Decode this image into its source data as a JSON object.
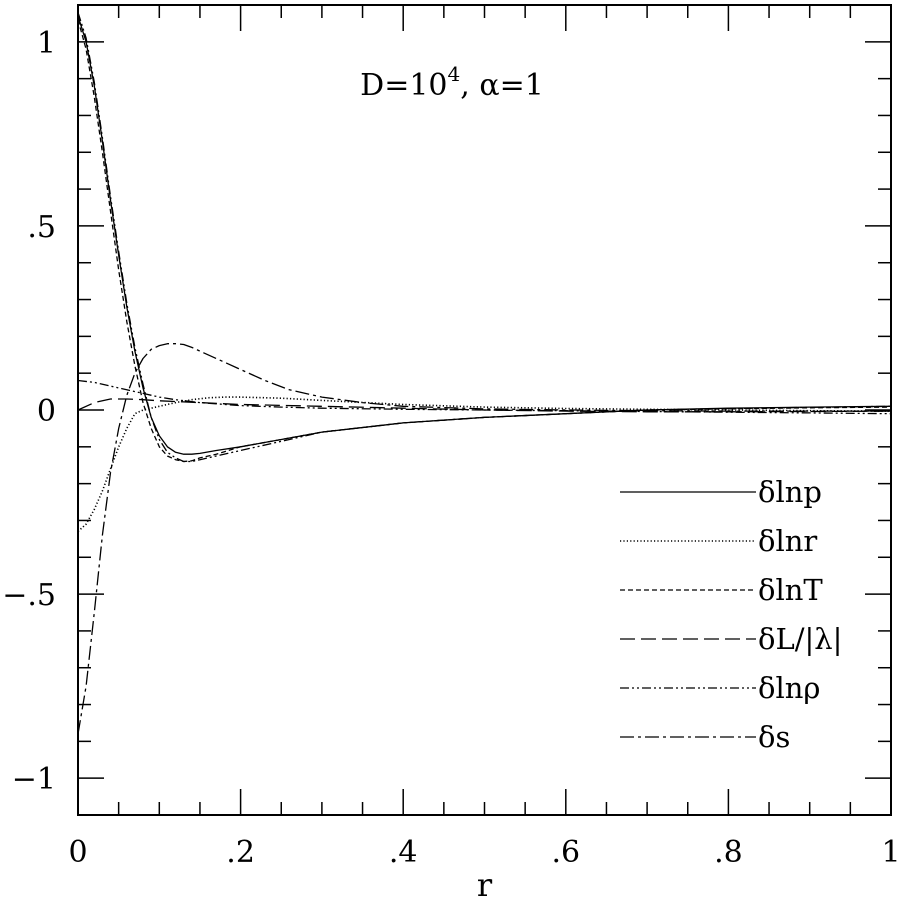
{
  "chart_data": {
    "type": "line",
    "title": "",
    "annotation": {
      "prefix": "D=10",
      "exponent": "4",
      "suffix": ",  α=1"
    },
    "xlabel": "r",
    "ylabel": "",
    "xlim": [
      0,
      1
    ],
    "ylim": [
      -1.1,
      1.1
    ],
    "x_ticks": [
      {
        "v": 0,
        "label": "0"
      },
      {
        "v": 0.2,
        "label": ".2"
      },
      {
        "v": 0.4,
        "label": ".4"
      },
      {
        "v": 0.6,
        "label": ".6"
      },
      {
        "v": 0.8,
        "label": ".8"
      },
      {
        "v": 1,
        "label": "1"
      }
    ],
    "y_ticks": [
      {
        "v": -1,
        "label": "−1"
      },
      {
        "v": -0.5,
        "label": "−.5"
      },
      {
        "v": 0,
        "label": "0"
      },
      {
        "v": 0.5,
        "label": ".5"
      },
      {
        "v": 1,
        "label": "1"
      }
    ],
    "grid": false,
    "legend_position": "lower-right",
    "series": [
      {
        "name": "δlnp",
        "style": "solid",
        "x": [
          0,
          0.01,
          0.02,
          0.03,
          0.04,
          0.05,
          0.06,
          0.07,
          0.08,
          0.09,
          0.1,
          0.11,
          0.12,
          0.13,
          0.14,
          0.15,
          0.17,
          0.2,
          0.25,
          0.3,
          0.4,
          0.5,
          0.6,
          0.7,
          0.8,
          0.9,
          1.0
        ],
        "y": [
          1.07,
          1.0,
          0.88,
          0.73,
          0.57,
          0.42,
          0.28,
          0.16,
          0.06,
          -0.02,
          -0.07,
          -0.1,
          -0.115,
          -0.12,
          -0.12,
          -0.118,
          -0.11,
          -0.1,
          -0.08,
          -0.06,
          -0.035,
          -0.02,
          -0.01,
          0.0,
          0.005,
          0.008,
          0.01
        ]
      },
      {
        "name": "δlnr",
        "style": "dotted",
        "x": [
          0,
          0.01,
          0.02,
          0.03,
          0.04,
          0.05,
          0.06,
          0.07,
          0.08,
          0.09,
          0.1,
          0.12,
          0.14,
          0.16,
          0.18,
          0.2,
          0.25,
          0.3,
          0.4,
          0.5,
          0.6,
          0.7,
          0.8,
          0.9,
          1.0
        ],
        "y": [
          -0.33,
          -0.31,
          -0.27,
          -0.22,
          -0.16,
          -0.1,
          -0.05,
          -0.01,
          0.0,
          0.005,
          0.01,
          0.02,
          0.028,
          0.033,
          0.035,
          0.035,
          0.032,
          0.026,
          0.015,
          0.008,
          0.004,
          0.002,
          0.0,
          -0.002,
          -0.003
        ]
      },
      {
        "name": "δlnT",
        "style": "dashed-short",
        "x": [
          0,
          0.01,
          0.02,
          0.03,
          0.04,
          0.05,
          0.06,
          0.07,
          0.08,
          0.09,
          0.1,
          0.11,
          0.12,
          0.13,
          0.14,
          0.15,
          0.17,
          0.2,
          0.25,
          0.3,
          0.4,
          0.5,
          0.6,
          0.7,
          0.8,
          0.9,
          1.0
        ],
        "y": [
          1.06,
          0.98,
          0.85,
          0.7,
          0.54,
          0.38,
          0.24,
          0.12,
          0.02,
          -0.05,
          -0.1,
          -0.125,
          -0.135,
          -0.14,
          -0.138,
          -0.13,
          -0.12,
          -0.1,
          -0.08,
          -0.06,
          -0.035,
          -0.02,
          -0.01,
          0.0,
          0.003,
          0.006,
          0.008
        ]
      },
      {
        "name": "δL/|λ|",
        "style": "dashed-long",
        "x": [
          0,
          0.02,
          0.04,
          0.06,
          0.08,
          0.1,
          0.15,
          0.2,
          0.3,
          0.4,
          0.5,
          0.6,
          0.7,
          0.8,
          0.9,
          1.0
        ],
        "y": [
          0.0,
          0.02,
          0.03,
          0.03,
          0.028,
          0.025,
          0.02,
          0.015,
          0.01,
          0.005,
          0.0,
          -0.003,
          -0.005,
          -0.005,
          -0.004,
          -0.003
        ]
      },
      {
        "name": "δlnρ",
        "style": "dash-dot-dot",
        "x": [
          0,
          0.01,
          0.02,
          0.03,
          0.04,
          0.05,
          0.06,
          0.07,
          0.08,
          0.09,
          0.1,
          0.11,
          0.12,
          0.13,
          0.14,
          0.15,
          0.17,
          0.2,
          0.25,
          0.3,
          0.4,
          0.5,
          0.6,
          0.7,
          0.8,
          0.9,
          1.0
        ],
        "y": [
          1.08,
          1.01,
          0.89,
          0.74,
          0.58,
          0.43,
          0.29,
          0.17,
          0.07,
          -0.02,
          -0.08,
          -0.115,
          -0.13,
          -0.14,
          -0.14,
          -0.135,
          -0.125,
          -0.11,
          -0.085,
          -0.06,
          -0.035,
          -0.02,
          -0.01,
          0.0,
          0.004,
          0.007,
          0.01
        ]
      },
      {
        "name": "δs",
        "style": "dash-dot",
        "x": [
          0,
          0.01,
          0.02,
          0.03,
          0.04,
          0.05,
          0.06,
          0.07,
          0.08,
          0.09,
          0.1,
          0.11,
          0.12,
          0.13,
          0.14,
          0.15,
          0.17,
          0.2,
          0.23,
          0.26,
          0.3,
          0.35,
          0.4,
          0.5,
          0.6,
          0.7,
          0.8,
          0.9,
          1.0
        ],
        "y": [
          -0.88,
          -0.75,
          -0.55,
          -0.34,
          -0.17,
          -0.05,
          0.04,
          0.1,
          0.14,
          0.165,
          0.175,
          0.18,
          0.18,
          0.178,
          0.17,
          0.16,
          0.14,
          0.11,
          0.08,
          0.055,
          0.035,
          0.02,
          0.01,
          0.003,
          0.0,
          -0.002,
          -0.003,
          -0.003,
          -0.003
        ]
      }
    ],
    "extra_curves": [
      {
        "style": "dash-dot-dot",
        "x": [
          0,
          0.02,
          0.04,
          0.06,
          0.08,
          0.1,
          0.12,
          0.15,
          0.2,
          0.25,
          0.3,
          0.4,
          0.5,
          0.6,
          0.7,
          0.8,
          0.9,
          1.0
        ],
        "y": [
          0.08,
          0.075,
          0.065,
          0.055,
          0.045,
          0.035,
          0.028,
          0.02,
          0.012,
          0.008,
          0.005,
          0.002,
          0.0,
          -0.002,
          -0.004,
          -0.006,
          -0.008,
          -0.01
        ]
      }
    ]
  }
}
